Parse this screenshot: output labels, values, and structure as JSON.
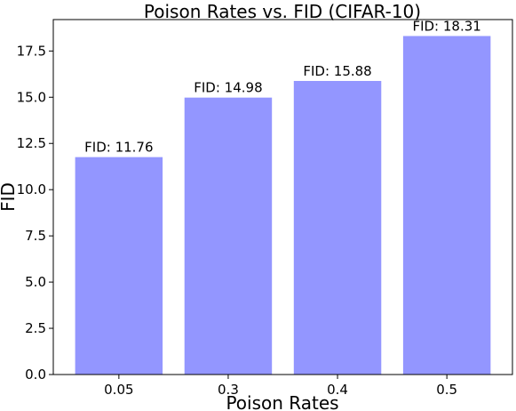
{
  "chart_data": {
    "type": "bar",
    "title": "Poison Rates vs. FID (CIFAR-10)",
    "xlabel": "Poison Rates",
    "ylabel": "FID",
    "categories": [
      "0.05",
      "0.3",
      "0.4",
      "0.5"
    ],
    "values": [
      11.76,
      14.98,
      15.88,
      18.31
    ],
    "data_labels": [
      "FID: 11.76",
      "FID: 14.98",
      "FID: 15.88",
      "FID: 18.31"
    ],
    "ylim": [
      0,
      19.2
    ],
    "yticks": [
      "0.0",
      "2.5",
      "5.0",
      "7.5",
      "10.0",
      "12.5",
      "15.0",
      "17.5"
    ],
    "grid": false,
    "bar_color": "#9396ff"
  }
}
